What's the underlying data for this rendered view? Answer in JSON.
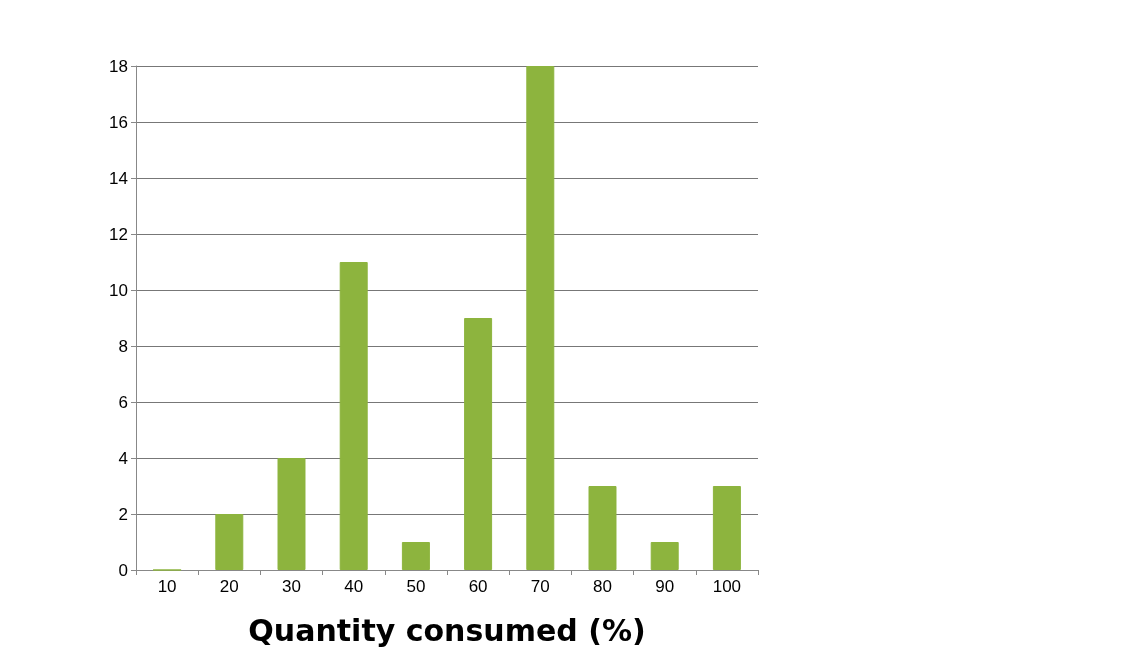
{
  "chart_data": {
    "type": "bar",
    "xlabel": "Quantity consumed (%)",
    "categories": [
      "10",
      "20",
      "30",
      "40",
      "50",
      "60",
      "70",
      "80",
      "90",
      "100"
    ],
    "values": [
      0,
      2,
      4,
      11,
      1,
      9,
      18,
      3,
      1,
      3
    ],
    "color": "#8db43e",
    "ylim": [
      0,
      18
    ],
    "yticks": [
      0,
      2,
      4,
      6,
      8,
      10,
      12,
      14,
      16,
      18
    ],
    "grid": "y"
  }
}
